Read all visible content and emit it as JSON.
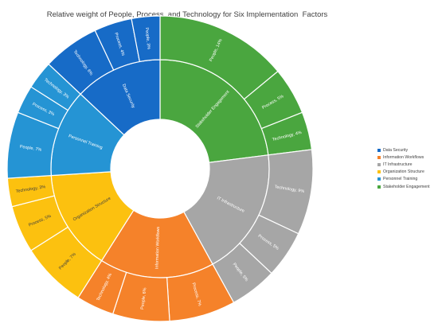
{
  "chart_data": {
    "type": "sunburst",
    "title": "Relative weight of People, Process, and Technology for Six Implementation  Factors",
    "categories": [
      {
        "name": "Stakeholder Engagement",
        "color": "#4aa63f",
        "label_color": "#ffffff",
        "children": [
          {
            "name": "People",
            "value": 14,
            "label": "People, 14%"
          },
          {
            "name": "Process",
            "value": 5,
            "label": "Process, 5%"
          },
          {
            "name": "Technology",
            "value": 4,
            "label": "Technology, 4%"
          }
        ]
      },
      {
        "name": "IT Infrastructure",
        "color": "#a6a6a6",
        "label_color": "#ffffff",
        "children": [
          {
            "name": "Technology",
            "value": 9,
            "label": "Technology, 9%"
          },
          {
            "name": "Process",
            "value": 5,
            "label": "Process, 5%"
          },
          {
            "name": "People",
            "value": 5,
            "label": "People, 5%"
          }
        ]
      },
      {
        "name": "Information Workflows",
        "color": "#f5822a",
        "label_color": "#ffffff",
        "children": [
          {
            "name": "Process",
            "value": 7,
            "label": "Process, 7%"
          },
          {
            "name": "People",
            "value": 6,
            "label": "People, 6%"
          },
          {
            "name": "Technology",
            "value": 4,
            "label": "Technology, 4%"
          }
        ]
      },
      {
        "name": "Organization Structure",
        "color": "#fcc10f",
        "label_color": "#404040",
        "children": [
          {
            "name": "People",
            "value": 7,
            "label": "People, 7%"
          },
          {
            "name": "Process",
            "value": 5,
            "label": "Process, 5%"
          },
          {
            "name": "Technology",
            "value": 3,
            "label": "Technology, 3%"
          }
        ]
      },
      {
        "name": "Personnel Training",
        "color": "#2594d4",
        "label_color": "#ffffff",
        "children": [
          {
            "name": "People",
            "value": 7,
            "label": "People, 7%"
          },
          {
            "name": "Process",
            "value": 3,
            "label": "Process, 3%"
          },
          {
            "name": "Technology",
            "value": 3,
            "label": "Technology, 3%"
          }
        ]
      },
      {
        "name": "Data Security",
        "color": "#176bc7",
        "label_color": "#ffffff",
        "children": [
          {
            "name": "Technology",
            "value": 6,
            "label": "Technology, 6%"
          },
          {
            "name": "Process",
            "value": 4,
            "label": "Process, 4%"
          },
          {
            "name": "People",
            "value": 3,
            "label": "People, 3%"
          }
        ]
      }
    ],
    "legend": {
      "position": "right",
      "items": [
        {
          "label": "Data Security",
          "color": "#176bc7"
        },
        {
          "label": "Information Workflows",
          "color": "#f5822a"
        },
        {
          "label": "IT Infrastructure",
          "color": "#a6a6a6"
        },
        {
          "label": "Organization Structure",
          "color": "#fcc10f"
        },
        {
          "label": "Personnel Training",
          "color": "#2594d4"
        },
        {
          "label": "Stakeholder Engagement",
          "color": "#4aa63f"
        }
      ]
    }
  }
}
